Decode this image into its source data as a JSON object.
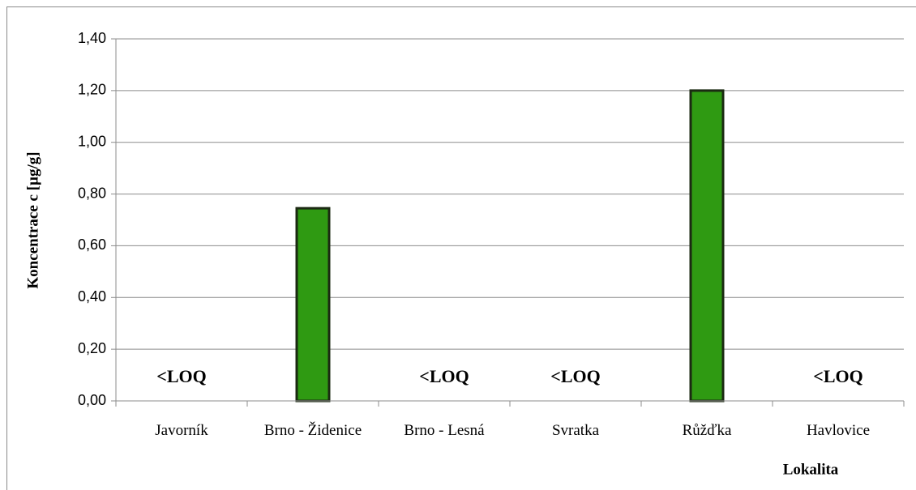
{
  "chart_data": {
    "type": "bar",
    "y_label": "Koncentrace c [µg/g]",
    "x_label": "Lokalita",
    "categories": [
      "Javorník",
      "Brno - Židenice",
      "Brno - Lesná",
      "Svratka",
      "Růžďka",
      "Havlovice"
    ],
    "values": [
      null,
      0.745,
      null,
      null,
      1.2,
      null
    ],
    "value_labels": [
      "<LOQ",
      null,
      "<LOQ",
      "<LOQ",
      null,
      "<LOQ"
    ],
    "color": "#2f9a12",
    "ylim": [
      0,
      1.4
    ],
    "yticks": [
      {
        "value": 0,
        "label": "0,00"
      },
      {
        "value": 0.2,
        "label": "0,20"
      },
      {
        "value": 0.4,
        "label": "0,40"
      },
      {
        "value": 0.6,
        "label": "0,60"
      },
      {
        "value": 0.8,
        "label": "0,80"
      },
      {
        "value": 1.0,
        "label": "1,00"
      },
      {
        "value": 1.2,
        "label": "1,20"
      },
      {
        "value": 1.4,
        "label": "1,40"
      }
    ],
    "grid": true
  }
}
